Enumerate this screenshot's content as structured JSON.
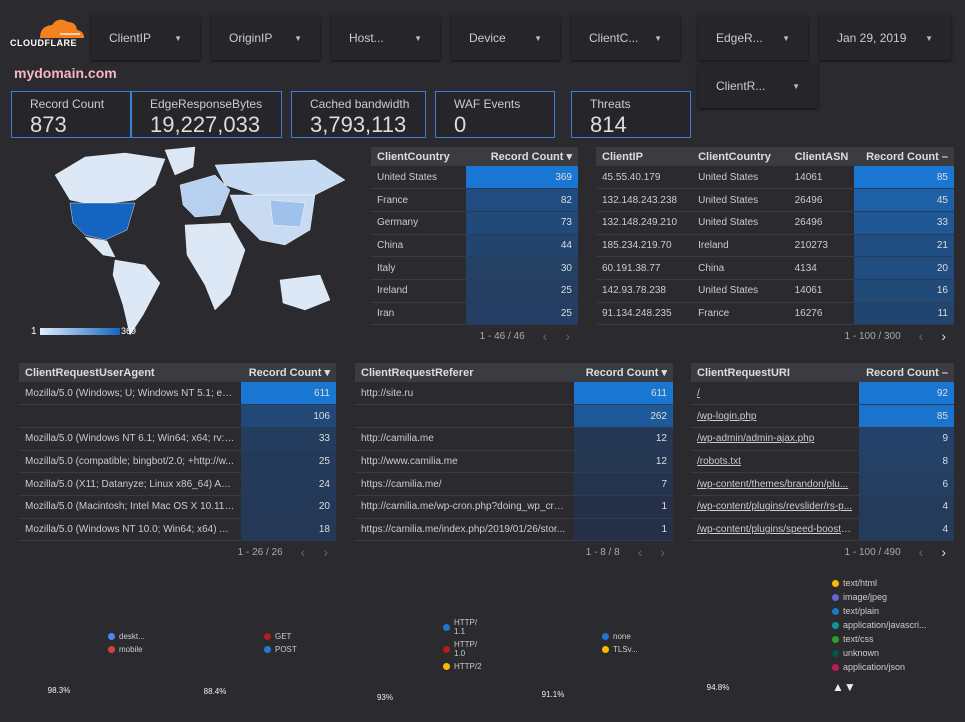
{
  "brand": {
    "name": "CLOUDFLARE",
    "color": "#f48120"
  },
  "filters": [
    {
      "label": "ClientIP"
    },
    {
      "label": "OriginIP"
    },
    {
      "label": "Host..."
    },
    {
      "label": "Device"
    },
    {
      "label": "ClientC..."
    },
    {
      "label": "EdgeR..."
    },
    {
      "label": "Jan 29, 2019"
    },
    {
      "label": "ClientR..."
    }
  ],
  "domain": "mydomain.com",
  "kpis": [
    {
      "label": "Record Count",
      "value": "873"
    },
    {
      "label": "EdgeResponseBytes",
      "value": "19,227,033"
    },
    {
      "label": "Cached bandwidth",
      "value": "3,793,113"
    },
    {
      "label": "WAF Events",
      "value": "0"
    },
    {
      "label": "Threats",
      "value": "814"
    }
  ],
  "map": {
    "legend_min": "1",
    "legend_max": "369"
  },
  "tables": {
    "country": {
      "headers": [
        "ClientCountry",
        "Record Count ▾"
      ],
      "max": 369,
      "rows": [
        [
          "United States",
          "369"
        ],
        [
          "France",
          "82"
        ],
        [
          "Germany",
          "73"
        ],
        [
          "China",
          "44"
        ],
        [
          "Italy",
          "30"
        ],
        [
          "Ireland",
          "25"
        ],
        [
          "Iran",
          "25"
        ]
      ],
      "pager": "1 - 46 / 46"
    },
    "ip": {
      "headers": [
        "ClientIP",
        "ClientCountry",
        "ClientASN",
        "Record Count –"
      ],
      "max": 85,
      "rows": [
        [
          "45.55.40.179",
          "United States",
          "14061",
          "85"
        ],
        [
          "132.148.243.238",
          "United States",
          "26496",
          "45"
        ],
        [
          "132.148.249.210",
          "United States",
          "26496",
          "33"
        ],
        [
          "185.234.219.70",
          "Ireland",
          "210273",
          "21"
        ],
        [
          "60.191.38.77",
          "China",
          "4134",
          "20"
        ],
        [
          "142.93.78.238",
          "United States",
          "14061",
          "16"
        ],
        [
          "91.134.248.235",
          "France",
          "16276",
          "11"
        ]
      ],
      "pager": "1 - 100 / 300"
    },
    "ua": {
      "headers": [
        "ClientRequestUserAgent",
        "Record Count ▾"
      ],
      "max": 611,
      "rows": [
        [
          "Mozilla/5.0 (Windows; U; Windows NT 5.1; en-U...",
          "611"
        ],
        [
          "",
          "106"
        ],
        [
          "Mozilla/5.0 (Windows NT 6.1; Win64; x64; rv:64....",
          "33"
        ],
        [
          "Mozilla/5.0 (compatible; bingbot/2.0; +http://w...",
          "25"
        ],
        [
          "Mozilla/5.0 (X11; Datanyze; Linux x86_64) Appl...",
          "24"
        ],
        [
          "Mozilla/5.0 (Macintosh; Intel Mac OS X 10.11; r...",
          "20"
        ],
        [
          "Mozilla/5.0 (Windows NT 10.0; Win64; x64) App...",
          "18"
        ]
      ],
      "pager": "1 - 26 / 26"
    },
    "referer": {
      "headers": [
        "ClientRequestReferer",
        "Record Count ▾"
      ],
      "max": 611,
      "rows": [
        [
          "http://site.ru",
          "611"
        ],
        [
          "",
          "262"
        ],
        [
          "http://camilia.me",
          "12"
        ],
        [
          "http://www.camilia.me",
          "12"
        ],
        [
          "https://camilia.me/",
          "7"
        ],
        [
          "http://camilia.me/wp-cron.php?doing_wp_cron...",
          "1"
        ],
        [
          "https://camilia.me/index.php/2019/01/26/stor...",
          "1"
        ]
      ],
      "pager": "1 - 8 / 8"
    },
    "uri": {
      "headers": [
        "ClientRequestURI",
        "Record Count –"
      ],
      "max": 92,
      "rows": [
        [
          "/",
          "92"
        ],
        [
          "/wp-login.php",
          "85"
        ],
        [
          "/wp-admin/admin-ajax.php",
          "9"
        ],
        [
          "/robots.txt",
          "8"
        ],
        [
          "/wp-content/themes/brandon/plu...",
          "6"
        ],
        [
          "/wp-content/plugins/revslider/rs-p...",
          "4"
        ],
        [
          "/wp-content/plugins/speed-booste...",
          "4"
        ]
      ],
      "pager": "1 - 100 / 490"
    }
  },
  "chart_data": [
    {
      "type": "pie",
      "donut": true,
      "slices": [
        {
          "name": "deskt...",
          "value": 98.3,
          "color": "#4a86f0"
        },
        {
          "name": "mobile",
          "value": 1.7,
          "color": "#d0453a"
        }
      ],
      "label": "98.3%"
    },
    {
      "type": "pie",
      "donut": true,
      "slices": [
        {
          "name": "GET",
          "value": 88.4,
          "color": "#b31d1d"
        },
        {
          "name": "POST",
          "value": 11.6,
          "color": "#1e7bd6"
        }
      ],
      "label": "88.4%"
    },
    {
      "type": "pie",
      "donut": true,
      "slices": [
        {
          "name": "HTTP/ 1.1",
          "value": 93,
          "color": "#1c76d6"
        },
        {
          "name": "HTTP/ 1.0",
          "value": 6.5,
          "color": "#b31d1d"
        },
        {
          "name": "HTTP/2",
          "value": 0.5,
          "color": "#fbb900"
        }
      ],
      "label": "93%"
    },
    {
      "type": "pie",
      "donut": true,
      "slices": [
        {
          "name": "none",
          "value": 91.1,
          "color": "#1c76d6"
        },
        {
          "name": "TLSv...",
          "value": 8.9,
          "color": "#fbb900"
        }
      ],
      "label": "91.1%"
    },
    {
      "type": "pie",
      "donut": true,
      "slices": [
        {
          "name": "text/html",
          "value": 94.8,
          "color": "#fbb900"
        },
        {
          "name": "image/jpeg",
          "value": 2.5,
          "color": "#6767d0"
        },
        {
          "name": "text/plain",
          "value": 1.2,
          "color": "#1f77c8"
        },
        {
          "name": "application/javascri...",
          "value": 0.8,
          "color": "#12939a"
        },
        {
          "name": "text/css",
          "value": 0.4,
          "color": "#2ca02c"
        },
        {
          "name": "unknown",
          "value": 0.2,
          "color": "#0b5345"
        },
        {
          "name": "application/json",
          "value": 0.1,
          "color": "#c2185b"
        }
      ],
      "label": "94.8%",
      "legend_pager": "▲▼"
    }
  ]
}
